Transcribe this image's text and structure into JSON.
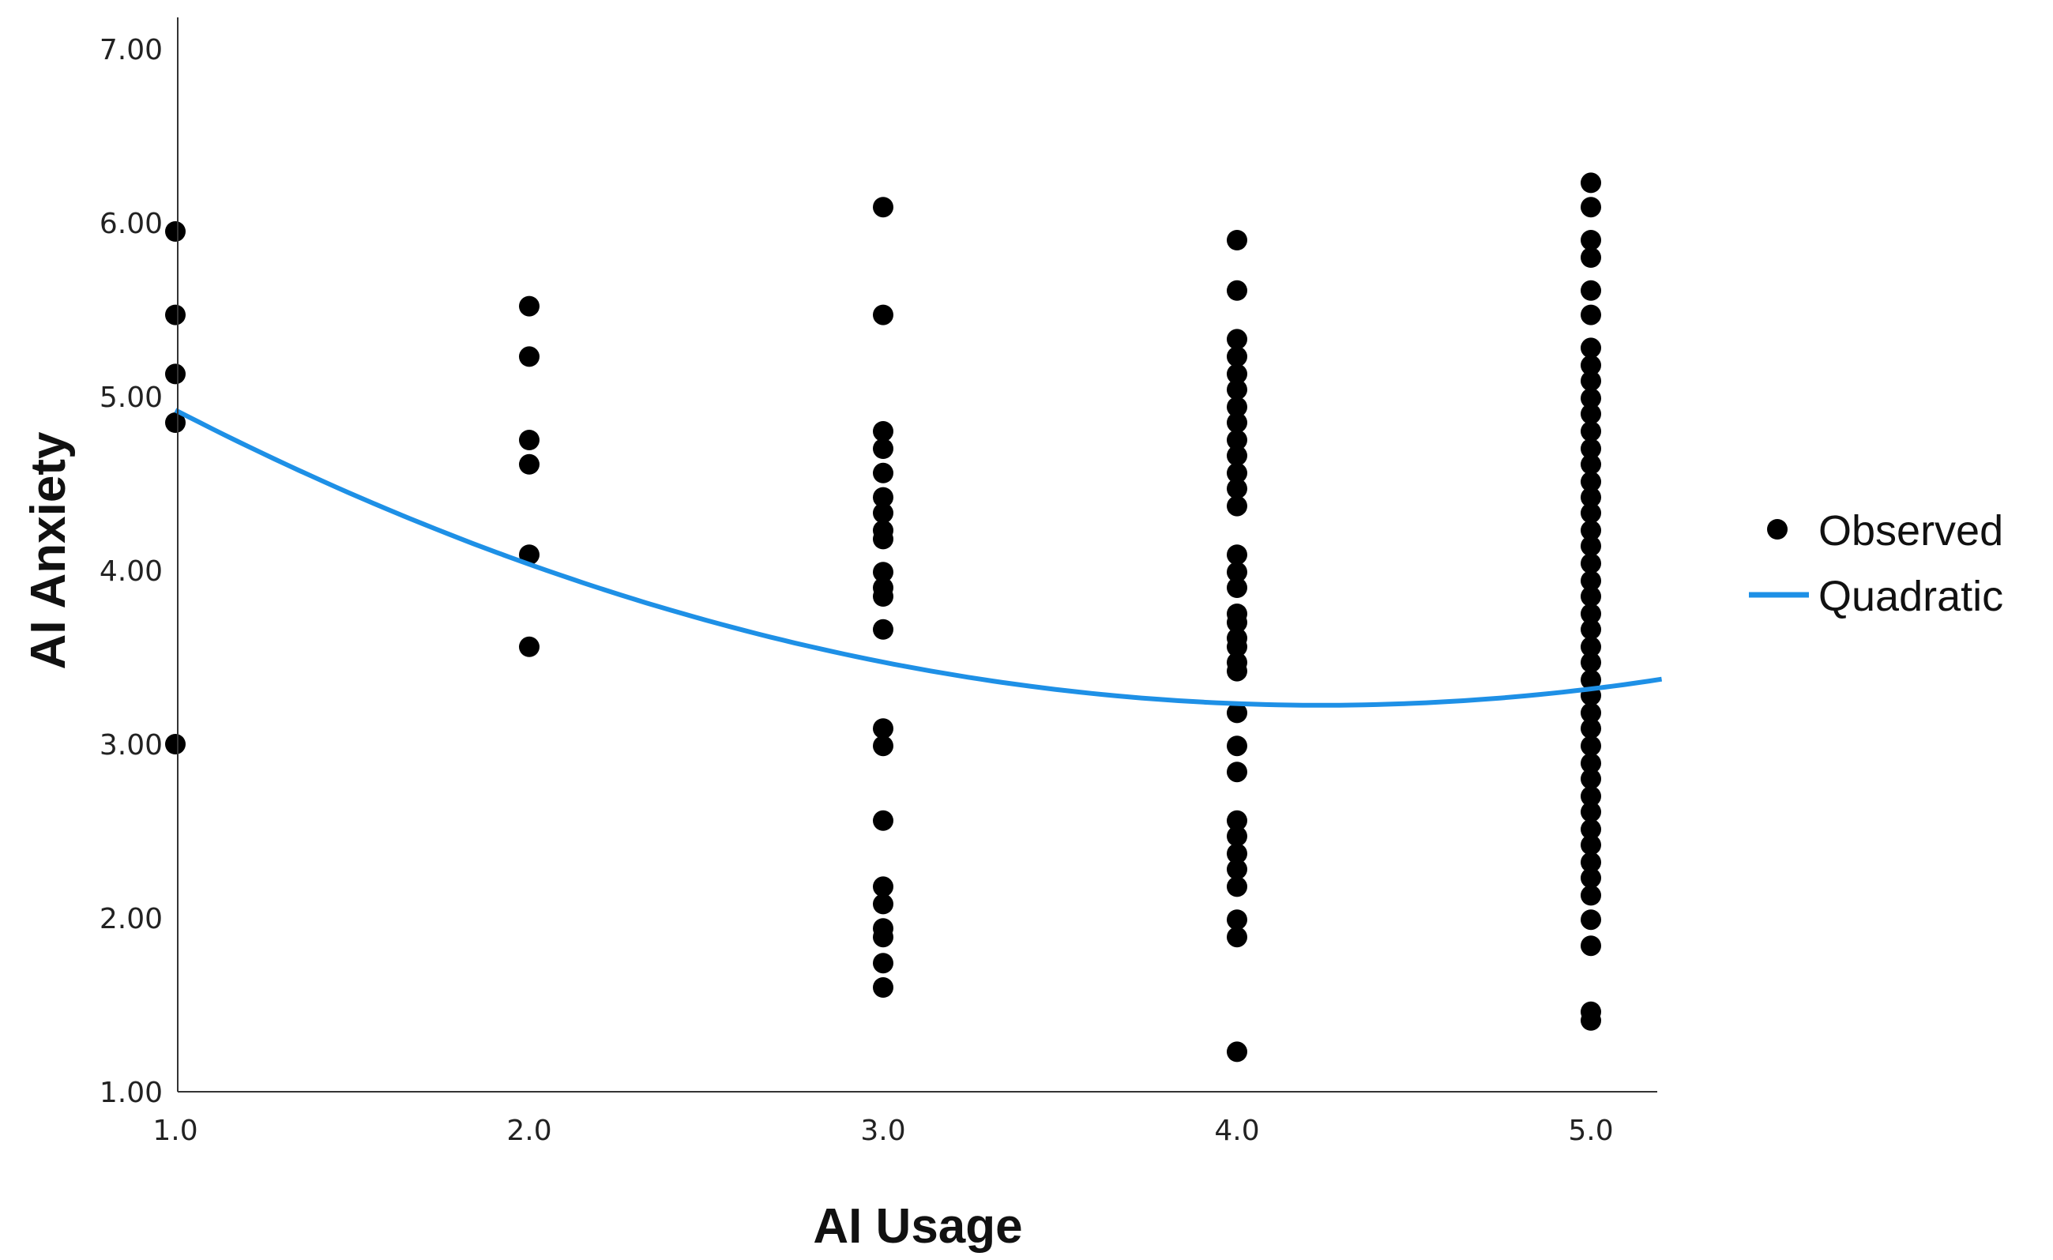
{
  "chart_data": {
    "type": "scatter",
    "xlabel": "AI Usage",
    "ylabel": "AI Anxiety",
    "xlim": [
      1.0,
      5.2
    ],
    "ylim": [
      1.0,
      7.2
    ],
    "x_ticks": [
      "1.0",
      "2.0",
      "3.0",
      "4.0",
      "5.0"
    ],
    "x_tick_values": [
      1,
      2,
      3,
      4,
      5
    ],
    "y_ticks": [
      "1.00",
      "2.00",
      "3.00",
      "4.00",
      "5.00",
      "6.00",
      "7.00"
    ],
    "y_tick_values": [
      1,
      2,
      3,
      4,
      5,
      6,
      7
    ],
    "grid": false,
    "legend_position": "right",
    "marker_color": "#000000",
    "line_color": "#1e90e6",
    "series": [
      {
        "name": "Observed",
        "kind": "scatter",
        "points": [
          [
            1,
            5.95
          ],
          [
            1,
            5.47
          ],
          [
            1,
            5.13
          ],
          [
            1,
            4.85
          ],
          [
            1,
            3.0
          ],
          [
            2,
            5.52
          ],
          [
            2,
            5.23
          ],
          [
            2,
            4.75
          ],
          [
            2,
            4.61
          ],
          [
            2,
            4.09
          ],
          [
            2,
            3.56
          ],
          [
            3,
            6.09
          ],
          [
            3,
            5.47
          ],
          [
            3,
            4.8
          ],
          [
            3,
            4.7
          ],
          [
            3,
            4.56
          ],
          [
            3,
            4.42
          ],
          [
            3,
            4.33
          ],
          [
            3,
            4.23
          ],
          [
            3,
            4.18
          ],
          [
            3,
            3.99
          ],
          [
            3,
            3.9
          ],
          [
            3,
            3.85
          ],
          [
            3,
            3.66
          ],
          [
            3,
            3.09
          ],
          [
            3,
            2.99
          ],
          [
            3,
            2.56
          ],
          [
            3,
            2.18
          ],
          [
            3,
            2.08
          ],
          [
            3,
            1.94
          ],
          [
            3,
            1.89
          ],
          [
            3,
            1.74
          ],
          [
            3,
            1.6
          ],
          [
            4,
            5.9
          ],
          [
            4,
            5.61
          ],
          [
            4,
            5.33
          ],
          [
            4,
            5.23
          ],
          [
            4,
            5.13
          ],
          [
            4,
            5.04
          ],
          [
            4,
            4.94
          ],
          [
            4,
            4.85
          ],
          [
            4,
            4.75
          ],
          [
            4,
            4.66
          ],
          [
            4,
            4.56
          ],
          [
            4,
            4.47
          ],
          [
            4,
            4.37
          ],
          [
            4,
            4.09
          ],
          [
            4,
            3.99
          ],
          [
            4,
            3.9
          ],
          [
            4,
            3.75
          ],
          [
            4,
            3.7
          ],
          [
            4,
            3.61
          ],
          [
            4,
            3.56
          ],
          [
            4,
            3.47
          ],
          [
            4,
            3.42
          ],
          [
            4,
            3.18
          ],
          [
            4,
            2.99
          ],
          [
            4,
            2.84
          ],
          [
            4,
            2.56
          ],
          [
            4,
            2.47
          ],
          [
            4,
            2.37
          ],
          [
            4,
            2.28
          ],
          [
            4,
            2.18
          ],
          [
            4,
            1.99
          ],
          [
            4,
            1.89
          ],
          [
            4,
            1.23
          ],
          [
            5,
            6.23
          ],
          [
            5,
            6.09
          ],
          [
            5,
            5.9
          ],
          [
            5,
            5.8
          ],
          [
            5,
            5.61
          ],
          [
            5,
            5.47
          ],
          [
            5,
            5.28
          ],
          [
            5,
            5.18
          ],
          [
            5,
            5.09
          ],
          [
            5,
            4.99
          ],
          [
            5,
            4.9
          ],
          [
            5,
            4.8
          ],
          [
            5,
            4.7
          ],
          [
            5,
            4.61
          ],
          [
            5,
            4.51
          ],
          [
            5,
            4.42
          ],
          [
            5,
            4.33
          ],
          [
            5,
            4.23
          ],
          [
            5,
            4.14
          ],
          [
            5,
            4.04
          ],
          [
            5,
            3.94
          ],
          [
            5,
            3.85
          ],
          [
            5,
            3.75
          ],
          [
            5,
            3.66
          ],
          [
            5,
            3.56
          ],
          [
            5,
            3.47
          ],
          [
            5,
            3.37
          ],
          [
            5,
            3.28
          ],
          [
            5,
            3.18
          ],
          [
            5,
            3.09
          ],
          [
            5,
            2.99
          ],
          [
            5,
            2.89
          ],
          [
            5,
            2.8
          ],
          [
            5,
            2.7
          ],
          [
            5,
            2.61
          ],
          [
            5,
            2.51
          ],
          [
            5,
            2.42
          ],
          [
            5,
            2.32
          ],
          [
            5,
            2.23
          ],
          [
            5,
            2.13
          ],
          [
            5,
            1.99
          ],
          [
            5,
            1.84
          ],
          [
            5,
            1.46
          ],
          [
            5,
            1.41
          ]
        ]
      },
      {
        "name": "Quadratic",
        "kind": "line",
        "coefficients": {
          "a": 0.162,
          "b": -1.373,
          "c": 6.133
        }
      }
    ]
  }
}
